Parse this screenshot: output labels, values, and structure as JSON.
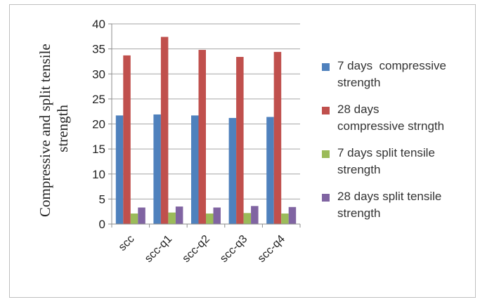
{
  "chart_data": {
    "type": "bar",
    "title": "",
    "xlabel": "",
    "ylabel_lines": [
      "Compressive and split tensile",
      "strength"
    ],
    "categories": [
      "scc",
      "scc-q1",
      "scc-q2",
      "scc-q3",
      "scc-q4"
    ],
    "ylim": [
      0,
      40
    ],
    "yticks": [
      0,
      5,
      10,
      15,
      20,
      25,
      30,
      35,
      40
    ],
    "grid": true,
    "legend_position": "right",
    "series": [
      {
        "name": "7 days  compressive\nstrength",
        "color": "#4f81bd",
        "values": [
          21.7,
          21.9,
          21.7,
          21.2,
          21.4
        ]
      },
      {
        "name": "28 days\ncompressive strngth",
        "color": "#c0504d",
        "values": [
          33.7,
          37.4,
          34.8,
          33.4,
          34.4
        ]
      },
      {
        "name": "7 days split tensile\nstrength",
        "color": "#9bbb59",
        "values": [
          2.1,
          2.3,
          2.1,
          2.2,
          2.1
        ]
      },
      {
        "name": "28 days split tensile\nstrength",
        "color": "#8064a2",
        "values": [
          3.3,
          3.5,
          3.3,
          3.6,
          3.4
        ]
      }
    ]
  }
}
